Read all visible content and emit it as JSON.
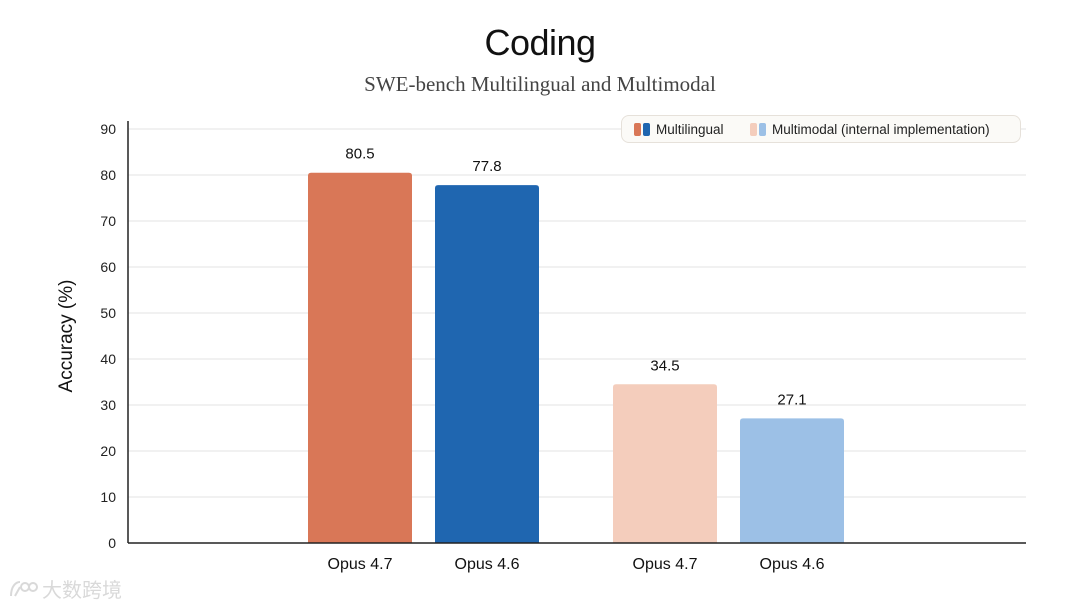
{
  "chart_data": {
    "type": "bar",
    "title": "Coding",
    "subtitle": "SWE-bench Multilingual and Multimodal",
    "ylabel": "Accuracy (%)",
    "ylim": [
      0,
      90
    ],
    "yticks": [
      0,
      10,
      20,
      30,
      40,
      50,
      60,
      70,
      80,
      90
    ],
    "grid": true,
    "legend_position": "top-right",
    "legend": [
      {
        "label": "Multilingual",
        "colors": [
          "#D97757",
          "#1F66B0"
        ]
      },
      {
        "label": "Multimodal (internal implementation)",
        "colors": [
          "#F4CDBC",
          "#9CC0E6"
        ]
      }
    ],
    "groups": [
      {
        "name": "Multilingual",
        "bars": [
          {
            "label": "Opus 4.7",
            "value": 80.5,
            "display": "80.5",
            "color": "#D97757"
          },
          {
            "label": "Opus 4.6",
            "value": 77.8,
            "display": "77.8",
            "color": "#1F66B0"
          }
        ]
      },
      {
        "name": "Multimodal (internal implementation)",
        "bars": [
          {
            "label": "Opus 4.7",
            "value": 34.5,
            "display": "34.5",
            "color": "#F4CDBC"
          },
          {
            "label": "Opus 4.6",
            "value": 27.1,
            "display": "27.1",
            "color": "#9CC0E6"
          }
        ]
      }
    ]
  },
  "watermark": {
    "text": "大数跨境"
  }
}
